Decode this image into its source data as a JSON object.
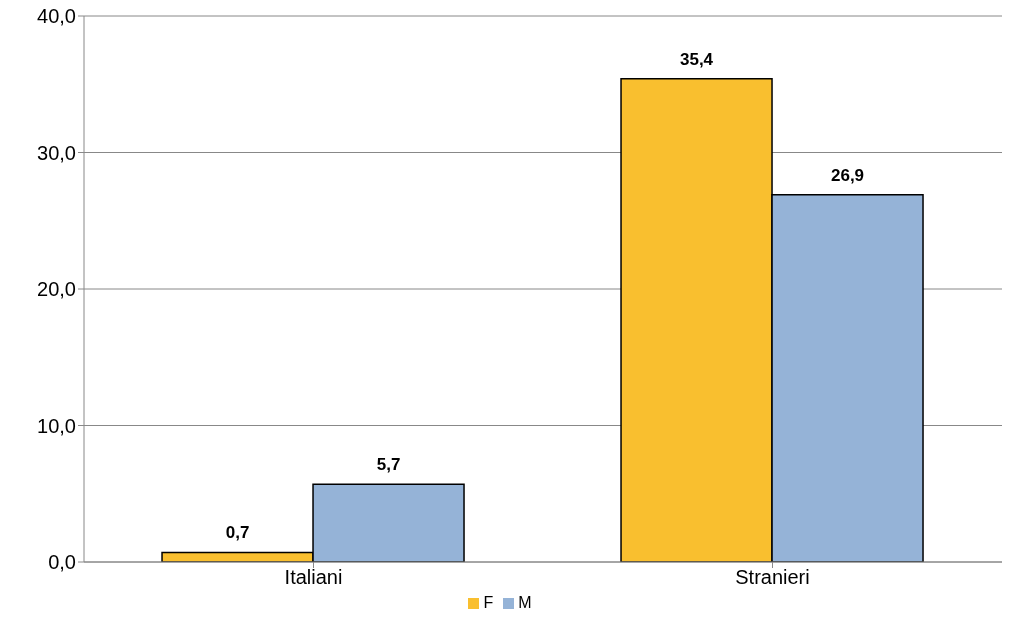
{
  "chart_data": {
    "type": "bar",
    "categories": [
      "Italiani",
      "Stranieri"
    ],
    "series": [
      {
        "name": "F",
        "color": "#f9bf2f",
        "values": [
          0.7,
          35.4
        ],
        "value_labels": [
          "0,7",
          "35,4"
        ]
      },
      {
        "name": "M",
        "color": "#95b3d7",
        "values": [
          5.7,
          26.9
        ],
        "value_labels": [
          "5,7",
          "26,9"
        ]
      }
    ],
    "ylim": [
      0,
      40
    ],
    "yticks": [
      {
        "value": 0,
        "label": "0,0"
      },
      {
        "value": 10,
        "label": "10,0"
      },
      {
        "value": 20,
        "label": "20,0"
      },
      {
        "value": 30,
        "label": "30,0"
      },
      {
        "value": 40,
        "label": "40,0"
      }
    ],
    "grid": "y",
    "legend": "bottom"
  }
}
